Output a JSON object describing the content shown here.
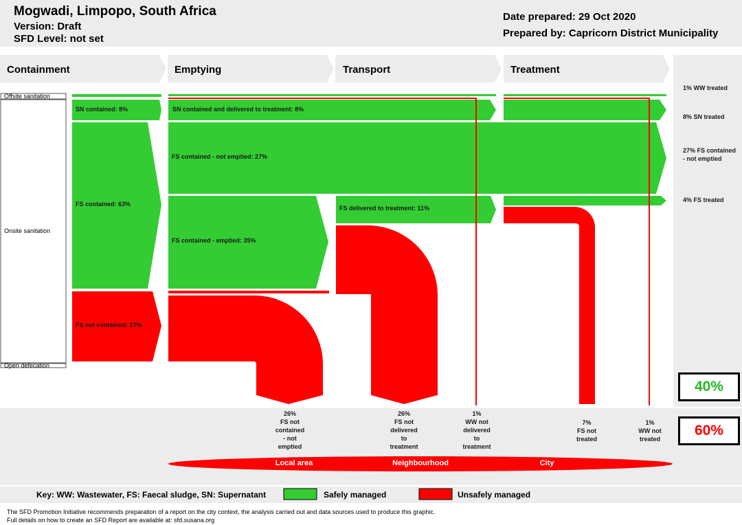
{
  "header": {
    "location": "Mogwadi, Limpopo, South Africa",
    "version": "Version: Draft",
    "sfd_level": "SFD Level: not set",
    "date_prepared": "Date prepared: 29 Oct 2020",
    "prepared_by": "Prepared by: Capricorn District Municipality"
  },
  "stages": [
    "Containment",
    "Emptying",
    "Transport",
    "Treatment"
  ],
  "containment_types": {
    "offsite": "Offsite sanitation",
    "onsite": "Onsite sanitation",
    "open": "Open defecation"
  },
  "flows": {
    "sn_contained": "SN contained: 8%",
    "fs_contained": "FS contained: 63%",
    "fs_not_contained": "FS not contained: 27%",
    "sn_delivered": "SN contained and delivered to treatment: 8%",
    "fs_not_emptied": "FS contained - not emptied: 27%",
    "fs_emptied": "FS contained - emptied: 35%",
    "fs_delivered": "FS delivered to treatment: 11%"
  },
  "side_labels": {
    "ww_treated": "1% WW treated",
    "sn_treated": "8% SN treated",
    "fs_not_emptied": "27% FS contained - not emptied",
    "fs_treated": "4% FS treated"
  },
  "unsafe_labels": [
    "26%\nFS not\ncontained\n- not\nemptied",
    "26%\nFS not\ndelivered\nto\ntreatment",
    "1%\nWW not\ndelivered\nto\ntreatment",
    "7%\nFS not\ntreated",
    "1%\nWW not\ntreated"
  ],
  "summary": {
    "safe": "40%",
    "unsafe": "60%"
  },
  "levels": [
    "Local area",
    "Neighbourhood",
    "City"
  ],
  "key": {
    "definition": "Key: WW: Wastewater, FS: Faecal sludge, SN: Supernatant",
    "safe": "Safely managed",
    "unsafe": "Unsafely managed"
  },
  "footer": {
    "line1": "The SFD Promotion Initiative recommends preparation of a report on the city context, the analysis carried out and data sources used to produce this graphic.",
    "line2": "Full details on how to create an SFD Report are available at: sfd.susana.org"
  },
  "colors": {
    "safe": "#33cc33",
    "unsafe": "#ff0000",
    "panel": "#ececec",
    "safe_text": "#22bb22"
  }
}
